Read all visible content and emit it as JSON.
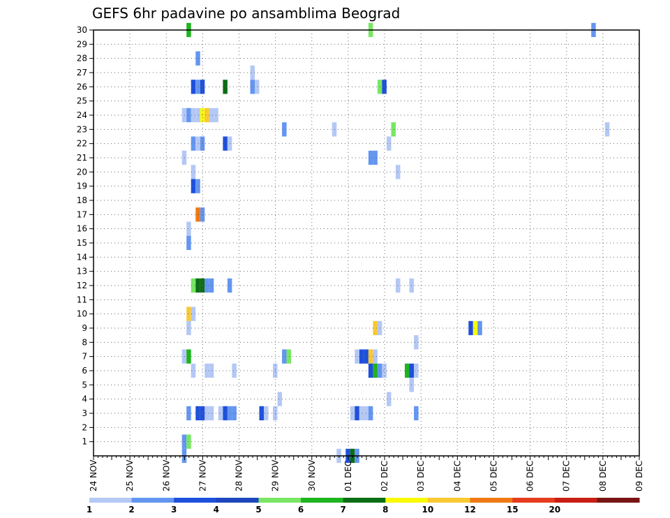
{
  "chart_data": {
    "type": "heatmap",
    "title": "GEFS 6hr padavine po ansamblima Beograd",
    "xlabel": "",
    "ylabel": "",
    "x_tick_labels": [
      "24 NOV",
      "25 NOV",
      "26 NOV",
      "27 NOV",
      "28 NOV",
      "29 NOV",
      "30 NOV",
      "01 DEC",
      "02 DEC",
      "03 DEC",
      "04 DEC",
      "05 DEC",
      "06 DEC",
      "07 DEC",
      "08 DEC",
      "09 DEC"
    ],
    "y_tick_labels": [
      "1",
      "2",
      "3",
      "4",
      "5",
      "6",
      "7",
      "8",
      "9",
      "10",
      "11",
      "12",
      "13",
      "14",
      "15",
      "16",
      "17",
      "18",
      "19",
      "20",
      "21",
      "22",
      "23",
      "24",
      "25",
      "26",
      "27",
      "28",
      "29",
      "30"
    ],
    "ylim": [
      0,
      30
    ],
    "x_step": "6 hours",
    "grid": true,
    "legend_position": "bottom",
    "colorbar": {
      "levels": [
        "1",
        "2",
        "3",
        "4",
        "5",
        "6",
        "7",
        "8",
        "10",
        "12",
        "15",
        "20"
      ],
      "colors": [
        "#b4c8f5",
        "#6496f0",
        "#1e50dc",
        "#1e46be",
        "#78e664",
        "#1eb41e",
        "#0a6e14",
        "#fafa00",
        "#fac832",
        "#f07814",
        "#e63c1e",
        "#c81e14",
        "#781414"
      ]
    },
    "cells": [
      [
        21,
        30,
        5
      ],
      [
        61,
        30,
        4
      ],
      [
        110,
        30,
        1
      ],
      [
        23,
        28,
        1
      ],
      [
        35,
        27,
        0
      ],
      [
        22,
        26,
        2
      ],
      [
        23,
        26,
        1
      ],
      [
        24,
        26,
        2
      ],
      [
        29,
        26,
        6
      ],
      [
        35,
        26,
        1
      ],
      [
        36,
        26,
        0
      ],
      [
        63,
        26,
        4
      ],
      [
        64,
        26,
        2
      ],
      [
        20,
        24,
        0
      ],
      [
        21,
        24,
        1
      ],
      [
        22,
        24,
        0
      ],
      [
        23,
        24,
        0
      ],
      [
        24,
        24,
        7
      ],
      [
        25,
        24,
        8
      ],
      [
        26,
        24,
        0
      ],
      [
        27,
        24,
        0
      ],
      [
        42,
        23,
        1
      ],
      [
        53,
        23,
        0
      ],
      [
        66,
        23,
        4
      ],
      [
        113,
        23,
        0
      ],
      [
        22,
        22,
        1
      ],
      [
        23,
        22,
        0
      ],
      [
        24,
        22,
        1
      ],
      [
        29,
        22,
        2
      ],
      [
        30,
        22,
        0
      ],
      [
        65,
        22,
        0
      ],
      [
        20,
        21,
        0
      ],
      [
        61,
        21,
        1
      ],
      [
        62,
        21,
        1
      ],
      [
        22,
        20,
        0
      ],
      [
        67,
        20,
        0
      ],
      [
        22,
        19,
        2
      ],
      [
        23,
        19,
        1
      ],
      [
        23,
        17,
        9
      ],
      [
        24,
        17,
        1
      ],
      [
        21,
        16,
        0
      ],
      [
        21,
        15,
        1
      ],
      [
        22,
        12,
        4
      ],
      [
        23,
        12,
        6
      ],
      [
        24,
        12,
        6
      ],
      [
        25,
        12,
        1
      ],
      [
        26,
        12,
        1
      ],
      [
        30,
        12,
        1
      ],
      [
        67,
        12,
        0
      ],
      [
        70,
        12,
        0
      ],
      [
        21,
        10,
        8
      ],
      [
        22,
        10,
        0
      ],
      [
        21,
        9,
        0
      ],
      [
        62,
        9,
        8
      ],
      [
        63,
        9,
        0
      ],
      [
        83,
        9,
        2
      ],
      [
        84,
        9,
        7
      ],
      [
        85,
        9,
        1
      ],
      [
        71,
        8,
        0
      ],
      [
        20,
        7,
        0
      ],
      [
        21,
        7,
        5
      ],
      [
        42,
        7,
        1
      ],
      [
        43,
        7,
        4
      ],
      [
        58,
        7,
        0
      ],
      [
        59,
        7,
        2
      ],
      [
        60,
        7,
        2
      ],
      [
        61,
        7,
        8
      ],
      [
        62,
        7,
        0
      ],
      [
        22,
        6,
        0
      ],
      [
        25,
        6,
        0
      ],
      [
        26,
        6,
        0
      ],
      [
        31,
        6,
        0
      ],
      [
        40,
        6,
        0
      ],
      [
        61,
        6,
        2
      ],
      [
        62,
        6,
        5
      ],
      [
        63,
        6,
        1
      ],
      [
        64,
        6,
        0
      ],
      [
        69,
        6,
        5
      ],
      [
        70,
        6,
        2
      ],
      [
        71,
        6,
        0
      ],
      [
        70,
        5,
        0
      ],
      [
        41,
        4,
        0
      ],
      [
        65,
        4,
        0
      ],
      [
        21,
        3,
        1
      ],
      [
        23,
        3,
        2
      ],
      [
        24,
        3,
        2
      ],
      [
        25,
        3,
        0
      ],
      [
        26,
        3,
        0
      ],
      [
        28,
        3,
        0
      ],
      [
        29,
        3,
        2
      ],
      [
        30,
        3,
        1
      ],
      [
        31,
        3,
        1
      ],
      [
        37,
        3,
        2
      ],
      [
        38,
        3,
        0
      ],
      [
        40,
        3,
        0
      ],
      [
        57,
        3,
        0
      ],
      [
        58,
        3,
        2
      ],
      [
        59,
        3,
        0
      ],
      [
        60,
        3,
        0
      ],
      [
        61,
        3,
        1
      ],
      [
        71,
        3,
        1
      ],
      [
        20,
        1,
        1
      ],
      [
        21,
        1,
        4
      ],
      [
        20,
        0,
        1
      ],
      [
        54,
        0,
        0
      ],
      [
        56,
        0,
        2
      ],
      [
        57,
        0,
        6
      ],
      [
        58,
        0,
        1
      ]
    ]
  }
}
